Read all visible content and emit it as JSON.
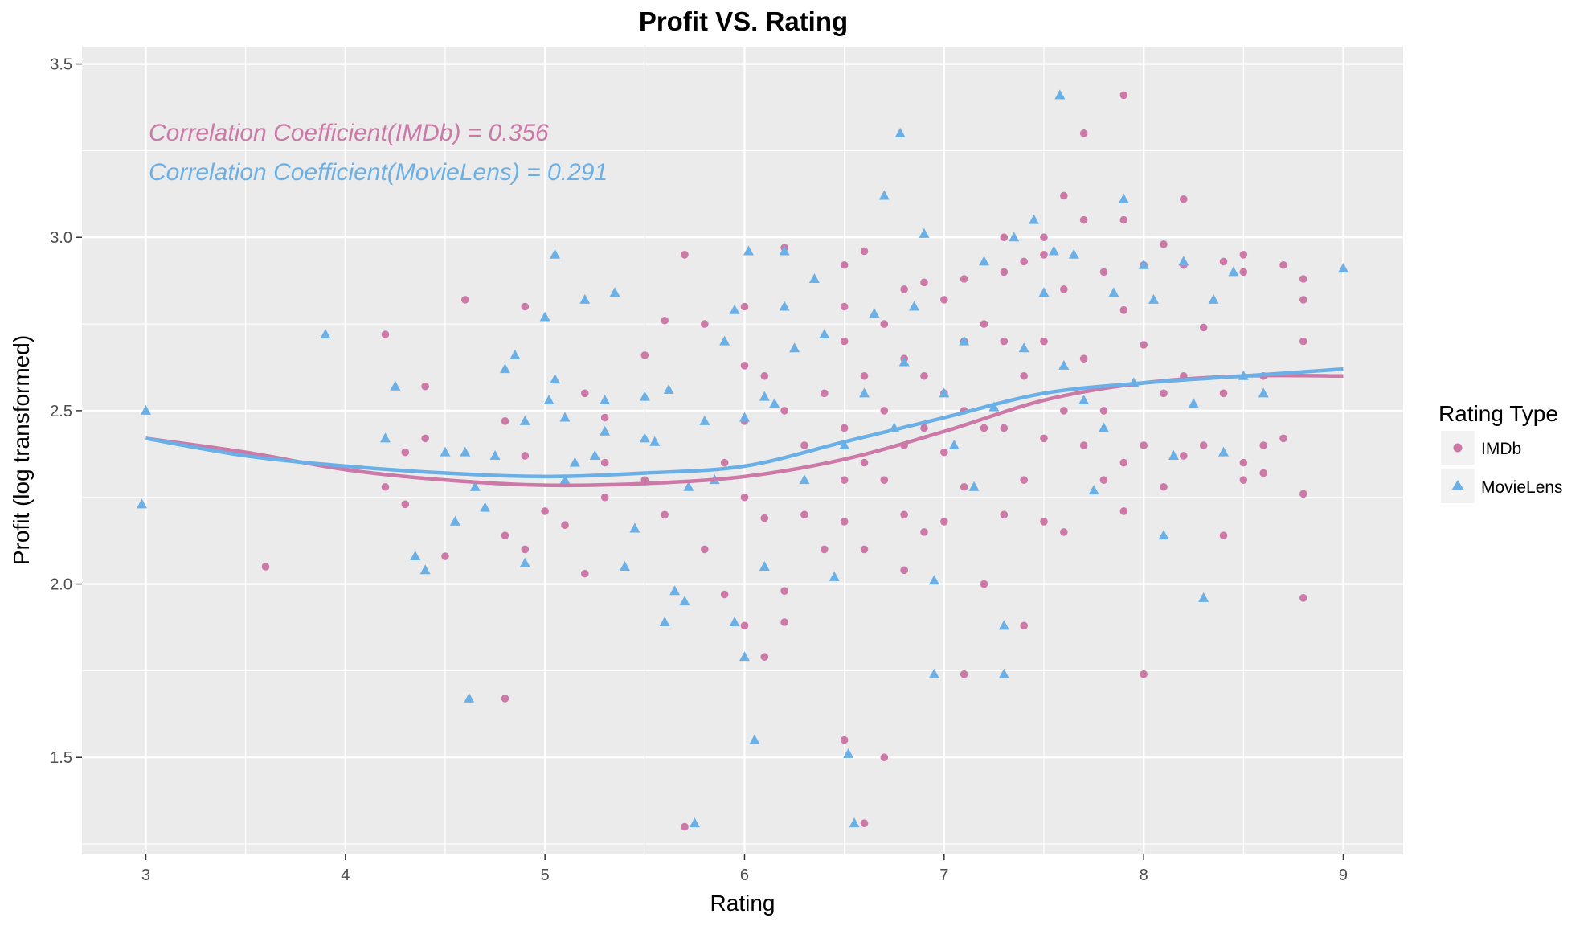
{
  "colors": {
    "imdb": "#cc79a7",
    "movielens": "#6ab0e6",
    "panel": "#ebebeb",
    "grid": "#ffffff",
    "legend_key": "#f2f2f2"
  },
  "chart_data": {
    "type": "scatter",
    "title": "Profit VS. Rating",
    "xlabel": "Rating",
    "ylabel": "Profit (log transformed)",
    "xlim": [
      2.68,
      9.3
    ],
    "ylim": [
      1.22,
      3.55
    ],
    "x_ticks": [
      3,
      4,
      5,
      6,
      7,
      8,
      9
    ],
    "y_ticks": [
      1.5,
      2.0,
      2.5,
      3.0,
      3.5
    ],
    "x_tick_labels": [
      "3",
      "4",
      "5",
      "6",
      "7",
      "8",
      "9"
    ],
    "y_tick_labels": [
      "1.5",
      "2.0",
      "2.5",
      "3.0",
      "3.5"
    ],
    "grid": true,
    "legend": {
      "title": "Rating Type",
      "placement": "right"
    },
    "annotations": [
      {
        "text": "Correlation Coefficient(IMDb) = 0.356",
        "series": "IMDb"
      },
      {
        "text": "Correlation Coefficient(MovieLens) = 0.291",
        "series": "MovieLens"
      }
    ],
    "series": [
      {
        "name": "IMDb",
        "marker": "circle",
        "points": [
          [
            3.6,
            2.05
          ],
          [
            4.2,
            2.72
          ],
          [
            4.2,
            2.28
          ],
          [
            4.3,
            2.38
          ],
          [
            4.3,
            2.23
          ],
          [
            4.4,
            2.57
          ],
          [
            4.4,
            2.42
          ],
          [
            4.5,
            2.08
          ],
          [
            4.6,
            2.82
          ],
          [
            4.8,
            2.47
          ],
          [
            4.8,
            2.14
          ],
          [
            4.8,
            1.67
          ],
          [
            4.9,
            2.8
          ],
          [
            4.9,
            2.37
          ],
          [
            4.9,
            2.1
          ],
          [
            5.0,
            2.21
          ],
          [
            5.1,
            2.17
          ],
          [
            5.2,
            2.55
          ],
          [
            5.2,
            2.03
          ],
          [
            5.3,
            2.48
          ],
          [
            5.3,
            2.25
          ],
          [
            5.3,
            2.35
          ],
          [
            5.5,
            2.66
          ],
          [
            5.5,
            2.3
          ],
          [
            5.6,
            2.76
          ],
          [
            5.6,
            2.2
          ],
          [
            5.7,
            2.95
          ],
          [
            5.7,
            1.3
          ],
          [
            5.8,
            2.75
          ],
          [
            5.8,
            2.1
          ],
          [
            5.9,
            2.35
          ],
          [
            5.9,
            1.97
          ],
          [
            6.0,
            2.8
          ],
          [
            6.0,
            2.63
          ],
          [
            6.0,
            2.47
          ],
          [
            6.0,
            2.25
          ],
          [
            6.0,
            1.88
          ],
          [
            6.1,
            2.6
          ],
          [
            6.1,
            2.19
          ],
          [
            6.1,
            1.79
          ],
          [
            6.2,
            2.97
          ],
          [
            6.2,
            2.5
          ],
          [
            6.2,
            1.98
          ],
          [
            6.2,
            1.89
          ],
          [
            6.3,
            2.4
          ],
          [
            6.3,
            2.2
          ],
          [
            6.4,
            2.55
          ],
          [
            6.4,
            2.1
          ],
          [
            6.5,
            2.92
          ],
          [
            6.5,
            2.8
          ],
          [
            6.5,
            2.7
          ],
          [
            6.5,
            2.45
          ],
          [
            6.5,
            2.3
          ],
          [
            6.5,
            2.18
          ],
          [
            6.5,
            1.55
          ],
          [
            6.6,
            2.96
          ],
          [
            6.6,
            2.6
          ],
          [
            6.6,
            2.35
          ],
          [
            6.6,
            2.1
          ],
          [
            6.6,
            1.31
          ],
          [
            6.7,
            2.75
          ],
          [
            6.7,
            2.5
          ],
          [
            6.7,
            2.3
          ],
          [
            6.7,
            1.5
          ],
          [
            6.8,
            2.85
          ],
          [
            6.8,
            2.65
          ],
          [
            6.8,
            2.4
          ],
          [
            6.8,
            2.2
          ],
          [
            6.8,
            2.04
          ],
          [
            6.9,
            2.87
          ],
          [
            6.9,
            2.6
          ],
          [
            6.9,
            2.45
          ],
          [
            6.9,
            2.15
          ],
          [
            7.0,
            2.82
          ],
          [
            7.0,
            2.55
          ],
          [
            7.0,
            2.38
          ],
          [
            7.0,
            2.18
          ],
          [
            7.1,
            2.88
          ],
          [
            7.1,
            2.7
          ],
          [
            7.1,
            2.5
          ],
          [
            7.1,
            2.28
          ],
          [
            7.1,
            1.74
          ],
          [
            7.2,
            2.75
          ],
          [
            7.2,
            2.45
          ],
          [
            7.2,
            2.0
          ],
          [
            7.3,
            3.0
          ],
          [
            7.3,
            2.9
          ],
          [
            7.3,
            2.7
          ],
          [
            7.3,
            2.45
          ],
          [
            7.3,
            2.2
          ],
          [
            7.4,
            2.93
          ],
          [
            7.4,
            2.6
          ],
          [
            7.4,
            2.3
          ],
          [
            7.4,
            1.88
          ],
          [
            7.5,
            3.0
          ],
          [
            7.5,
            2.95
          ],
          [
            7.5,
            2.7
          ],
          [
            7.5,
            2.42
          ],
          [
            7.5,
            2.18
          ],
          [
            7.6,
            3.12
          ],
          [
            7.6,
            2.85
          ],
          [
            7.6,
            2.5
          ],
          [
            7.6,
            2.15
          ],
          [
            7.7,
            3.3
          ],
          [
            7.7,
            3.05
          ],
          [
            7.7,
            2.65
          ],
          [
            7.7,
            2.4
          ],
          [
            7.8,
            2.9
          ],
          [
            7.8,
            2.5
          ],
          [
            7.8,
            2.3
          ],
          [
            7.9,
            3.41
          ],
          [
            7.9,
            3.05
          ],
          [
            7.9,
            2.79
          ],
          [
            7.9,
            2.35
          ],
          [
            7.9,
            2.21
          ],
          [
            8.0,
            2.92
          ],
          [
            8.0,
            2.69
          ],
          [
            8.0,
            2.4
          ],
          [
            8.0,
            1.74
          ],
          [
            8.1,
            2.98
          ],
          [
            8.1,
            2.55
          ],
          [
            8.1,
            2.28
          ],
          [
            8.2,
            3.11
          ],
          [
            8.2,
            2.92
          ],
          [
            8.2,
            2.6
          ],
          [
            8.2,
            2.37
          ],
          [
            8.3,
            2.74
          ],
          [
            8.3,
            2.4
          ],
          [
            8.4,
            2.93
          ],
          [
            8.4,
            2.55
          ],
          [
            8.4,
            2.14
          ],
          [
            8.5,
            2.95
          ],
          [
            8.5,
            2.9
          ],
          [
            8.5,
            2.35
          ],
          [
            8.5,
            2.3
          ],
          [
            8.6,
            2.6
          ],
          [
            8.6,
            2.4
          ],
          [
            8.6,
            2.32
          ],
          [
            8.7,
            2.92
          ],
          [
            8.7,
            2.42
          ],
          [
            8.8,
            2.88
          ],
          [
            8.8,
            2.82
          ],
          [
            8.8,
            2.7
          ],
          [
            8.8,
            2.26
          ],
          [
            8.8,
            1.96
          ]
        ],
        "trend": [
          [
            3.0,
            2.42
          ],
          [
            3.5,
            2.38
          ],
          [
            4.0,
            2.33
          ],
          [
            4.5,
            2.3
          ],
          [
            5.0,
            2.285
          ],
          [
            5.5,
            2.29
          ],
          [
            6.0,
            2.31
          ],
          [
            6.5,
            2.36
          ],
          [
            7.0,
            2.44
          ],
          [
            7.5,
            2.53
          ],
          [
            8.0,
            2.58
          ],
          [
            8.5,
            2.6
          ],
          [
            9.0,
            2.6
          ]
        ]
      },
      {
        "name": "MovieLens",
        "marker": "triangle",
        "points": [
          [
            2.98,
            2.23
          ],
          [
            3.0,
            2.5
          ],
          [
            3.9,
            2.72
          ],
          [
            4.2,
            2.42
          ],
          [
            4.25,
            2.57
          ],
          [
            4.35,
            2.08
          ],
          [
            4.4,
            2.04
          ],
          [
            4.5,
            2.38
          ],
          [
            4.55,
            2.18
          ],
          [
            4.6,
            2.38
          ],
          [
            4.62,
            1.67
          ],
          [
            4.65,
            2.28
          ],
          [
            4.7,
            2.22
          ],
          [
            4.75,
            2.37
          ],
          [
            4.8,
            2.62
          ],
          [
            4.85,
            2.66
          ],
          [
            4.9,
            2.47
          ],
          [
            4.9,
            2.06
          ],
          [
            5.0,
            2.77
          ],
          [
            5.02,
            2.53
          ],
          [
            5.05,
            2.95
          ],
          [
            5.05,
            2.59
          ],
          [
            5.1,
            2.48
          ],
          [
            5.1,
            2.3
          ],
          [
            5.15,
            2.35
          ],
          [
            5.2,
            2.82
          ],
          [
            5.25,
            2.37
          ],
          [
            5.3,
            2.53
          ],
          [
            5.3,
            2.44
          ],
          [
            5.35,
            2.84
          ],
          [
            5.4,
            2.05
          ],
          [
            5.45,
            2.16
          ],
          [
            5.5,
            2.42
          ],
          [
            5.5,
            2.54
          ],
          [
            5.55,
            2.41
          ],
          [
            5.6,
            1.89
          ],
          [
            5.62,
            2.56
          ],
          [
            5.65,
            1.98
          ],
          [
            5.7,
            1.95
          ],
          [
            5.72,
            2.28
          ],
          [
            5.75,
            1.31
          ],
          [
            5.8,
            2.47
          ],
          [
            5.85,
            2.3
          ],
          [
            5.9,
            2.7
          ],
          [
            5.95,
            2.79
          ],
          [
            5.95,
            1.89
          ],
          [
            6.0,
            1.79
          ],
          [
            6.0,
            2.48
          ],
          [
            6.02,
            2.96
          ],
          [
            6.05,
            1.55
          ],
          [
            6.1,
            2.54
          ],
          [
            6.1,
            2.05
          ],
          [
            6.15,
            2.52
          ],
          [
            6.2,
            2.96
          ],
          [
            6.2,
            2.8
          ],
          [
            6.25,
            2.68
          ],
          [
            6.3,
            2.3
          ],
          [
            6.35,
            2.88
          ],
          [
            6.4,
            2.72
          ],
          [
            6.45,
            2.02
          ],
          [
            6.5,
            2.4
          ],
          [
            6.52,
            1.51
          ],
          [
            6.55,
            1.31
          ],
          [
            6.6,
            2.55
          ],
          [
            6.65,
            2.78
          ],
          [
            6.7,
            3.12
          ],
          [
            6.75,
            2.45
          ],
          [
            6.78,
            3.3
          ],
          [
            6.8,
            2.64
          ],
          [
            6.85,
            2.8
          ],
          [
            6.9,
            3.01
          ],
          [
            6.95,
            2.01
          ],
          [
            6.95,
            1.74
          ],
          [
            7.0,
            2.55
          ],
          [
            7.05,
            2.4
          ],
          [
            7.1,
            2.7
          ],
          [
            7.15,
            2.28
          ],
          [
            7.2,
            2.93
          ],
          [
            7.25,
            2.51
          ],
          [
            7.3,
            1.74
          ],
          [
            7.3,
            1.88
          ],
          [
            7.35,
            3.0
          ],
          [
            7.4,
            2.68
          ],
          [
            7.45,
            3.05
          ],
          [
            7.5,
            2.84
          ],
          [
            7.55,
            2.96
          ],
          [
            7.58,
            3.41
          ],
          [
            7.6,
            2.63
          ],
          [
            7.65,
            2.95
          ],
          [
            7.7,
            2.53
          ],
          [
            7.75,
            2.27
          ],
          [
            7.8,
            2.45
          ],
          [
            7.85,
            2.84
          ],
          [
            7.9,
            3.11
          ],
          [
            7.95,
            2.58
          ],
          [
            8.0,
            2.92
          ],
          [
            8.05,
            2.82
          ],
          [
            8.1,
            2.14
          ],
          [
            8.15,
            2.37
          ],
          [
            8.2,
            2.93
          ],
          [
            8.25,
            2.52
          ],
          [
            8.3,
            1.96
          ],
          [
            8.35,
            2.82
          ],
          [
            8.4,
            2.38
          ],
          [
            8.45,
            2.9
          ],
          [
            8.5,
            2.6
          ],
          [
            8.6,
            2.55
          ],
          [
            9.0,
            2.91
          ]
        ],
        "trend": [
          [
            3.0,
            2.42
          ],
          [
            3.5,
            2.37
          ],
          [
            4.0,
            2.34
          ],
          [
            4.5,
            2.32
          ],
          [
            5.0,
            2.31
          ],
          [
            5.5,
            2.32
          ],
          [
            6.0,
            2.34
          ],
          [
            6.5,
            2.41
          ],
          [
            7.0,
            2.48
          ],
          [
            7.5,
            2.55
          ],
          [
            8.0,
            2.58
          ],
          [
            8.5,
            2.6
          ],
          [
            9.0,
            2.62
          ]
        ]
      }
    ]
  }
}
